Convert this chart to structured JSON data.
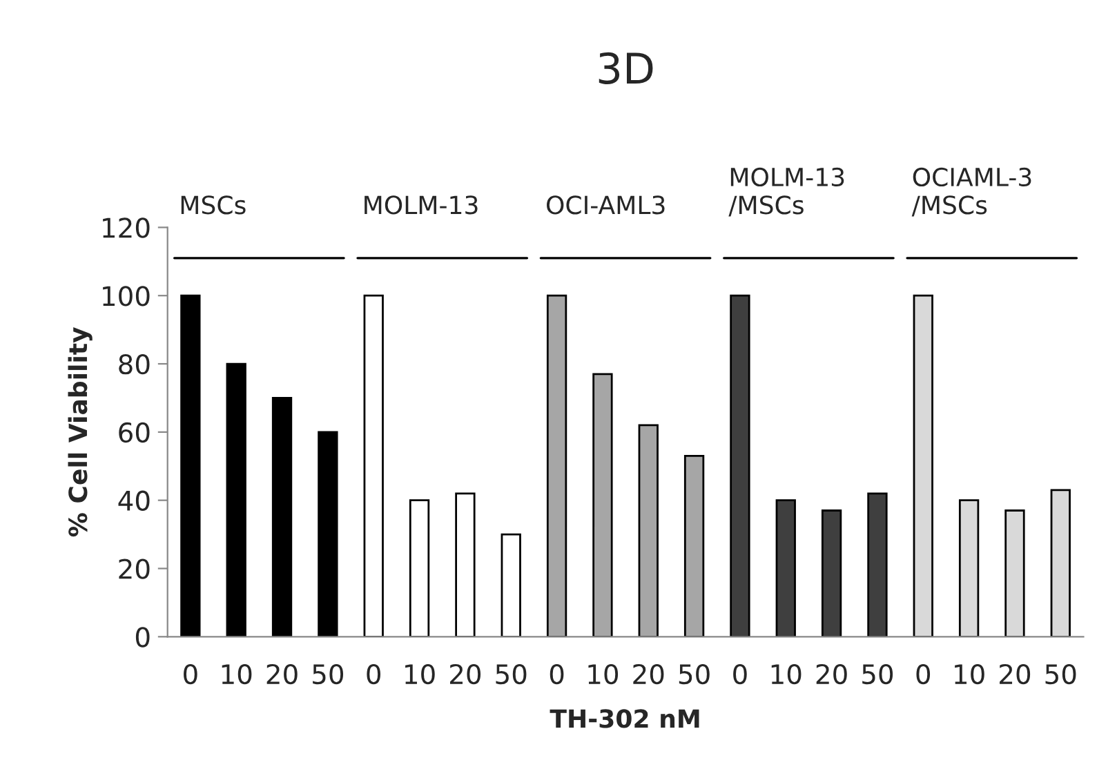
{
  "chart_data": {
    "type": "bar",
    "title": "3D",
    "xlabel": "TH-302 nM",
    "ylabel": "% Cell Viability",
    "categories": [
      "0",
      "10",
      "20",
      "50",
      "0",
      "10",
      "20",
      "50",
      "0",
      "10",
      "20",
      "50",
      "0",
      "10",
      "20",
      "50",
      "0",
      "10",
      "20",
      "50"
    ],
    "values": [
      100,
      80,
      70,
      60,
      100,
      40,
      42,
      30,
      100,
      77,
      62,
      53,
      100,
      40,
      37,
      42,
      100,
      40,
      37,
      43
    ],
    "colors": [
      "#000000",
      "#000000",
      "#000000",
      "#000000",
      "#ffffff",
      "#ffffff",
      "#ffffff",
      "#ffffff",
      "#a6a6a6",
      "#a6a6a6",
      "#a6a6a6",
      "#a6a6a6",
      "#3f3f3f",
      "#3f3f3f",
      "#3f3f3f",
      "#3f3f3f",
      "#d9d9d9",
      "#d9d9d9",
      "#d9d9d9",
      "#d9d9d9"
    ],
    "annotations": [
      "MSCs",
      "MOLM-13",
      "OCI-AML3",
      "MOLM-13\n/MSCs",
      "OCIAML-3\n/MSCs"
    ],
    "ylim": [
      0,
      120
    ],
    "yticks": [
      0,
      20,
      40,
      60,
      80,
      100,
      120
    ],
    "grid": false,
    "legend": false
  }
}
